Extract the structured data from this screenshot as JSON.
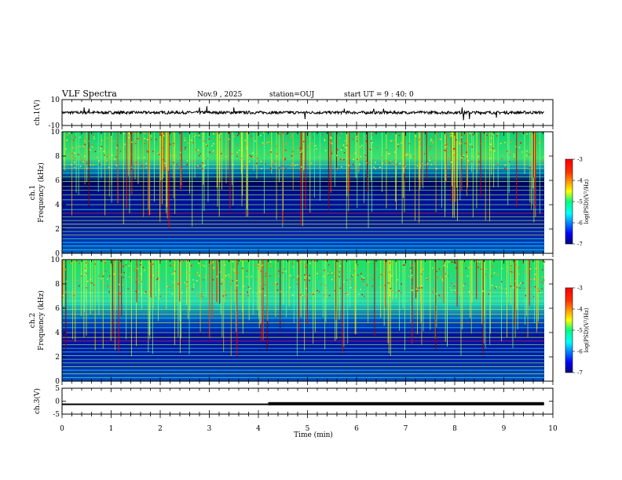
{
  "header": {
    "title": "VLF Spectra",
    "date": "Nov.9 , 2025",
    "station": "station=OUJ",
    "start": "start UT = 9 : 40: 0"
  },
  "chart_data": {
    "type": "heatmap",
    "xlabel": "Time (min)",
    "xlim": [
      0,
      10
    ],
    "x_ticks": [
      "0",
      "1",
      "2",
      "3",
      "4",
      "5",
      "6",
      "7",
      "8",
      "9",
      "10"
    ],
    "colormap": "jet",
    "colors": {
      "low": "#00007f",
      "mid": "#00ff80",
      "high": "#ff0000"
    },
    "panels": [
      {
        "id": "ch1-waveform",
        "ylabel": "ch.1(V)",
        "ylim": [
          -10,
          10
        ],
        "y_ticks": [
          "10",
          "-10"
        ],
        "baseline": 0,
        "spikes": [
          {
            "t": 0.45,
            "v": 4
          },
          {
            "t": 0.55,
            "v": 3
          },
          {
            "t": 2.8,
            "v": 4
          },
          {
            "t": 2.95,
            "v": 5
          },
          {
            "t": 3.5,
            "v": 4
          },
          {
            "t": 4.95,
            "v": -5
          },
          {
            "t": 5.75,
            "v": 3
          },
          {
            "t": 6.35,
            "v": 3
          },
          {
            "t": 6.55,
            "v": 3
          },
          {
            "t": 8.15,
            "v": 4
          },
          {
            "t": 8.18,
            "v": -6
          },
          {
            "t": 8.3,
            "v": -5
          },
          {
            "t": 8.85,
            "v": -4
          }
        ]
      },
      {
        "id": "ch1-spectrogram",
        "ylabel": "ch.1\nFrequency (kHz)",
        "ylim": [
          0,
          10
        ],
        "y_ticks": [
          "0",
          "2",
          "4",
          "6",
          "8",
          "10"
        ],
        "colorbar": {
          "label": "log(PSD)(V²/Hz)",
          "ticks": [
            "-3",
            "-4",
            "-5",
            "-6",
            "-7"
          ],
          "range": [
            -7,
            -3
          ]
        }
      },
      {
        "id": "ch2-spectrogram",
        "ylabel": "ch.2\nFrequency (kHz)",
        "ylim": [
          0,
          10
        ],
        "y_ticks": [
          "0",
          "2",
          "4",
          "6",
          "8",
          "10"
        ],
        "colorbar": {
          "label": "log(PSD)(V²/Hz)",
          "ticks": [
            "-3",
            "-4",
            "-5",
            "-6",
            "-7"
          ],
          "range": [
            -7,
            -3
          ]
        }
      },
      {
        "id": "ch3-waveform",
        "ylabel": "ch.3(V)",
        "ylim": [
          -5,
          5
        ],
        "y_ticks": [
          "5",
          "0",
          "-5"
        ],
        "segments": [
          {
            "from": 0,
            "to": 4.2,
            "v": -1.2
          },
          {
            "from": 4.2,
            "to": 9.82,
            "v": -1.0
          }
        ]
      }
    ]
  }
}
